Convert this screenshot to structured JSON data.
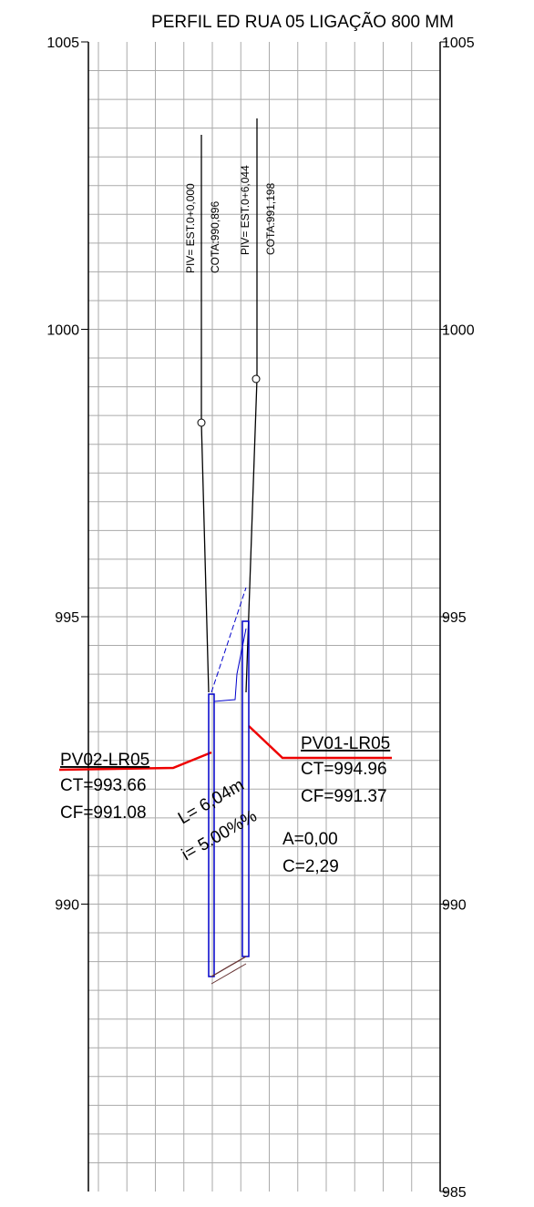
{
  "title": "PERFIL ED RUA 05 LIGAÇÃO 800 MM",
  "left_axis": {
    "ylim": [
      985,
      1005
    ],
    "yticks": [
      1005,
      1000,
      995,
      990
    ]
  },
  "right_axis": {
    "ylim": [
      985,
      1005
    ],
    "yticks": [
      1005,
      1000,
      995,
      990,
      985
    ]
  },
  "piv_labels": [
    "PIV= EST.0+0,000",
    "COTA:990,896",
    "PIV= EST.0+6,044",
    "COTA:991,198"
  ],
  "pv02": {
    "name": "PV02-LR05",
    "ct": "CT=993.66",
    "cf": "CF=991.08"
  },
  "pv01": {
    "name": "PV01-LR05",
    "ct": "CT=994.96",
    "cf": "CF=991.37"
  },
  "pipe": {
    "length": "L= 6,04m",
    "slope": "i= 5.00%%",
    "a": "A=0,00",
    "c": "C=2,29"
  }
}
